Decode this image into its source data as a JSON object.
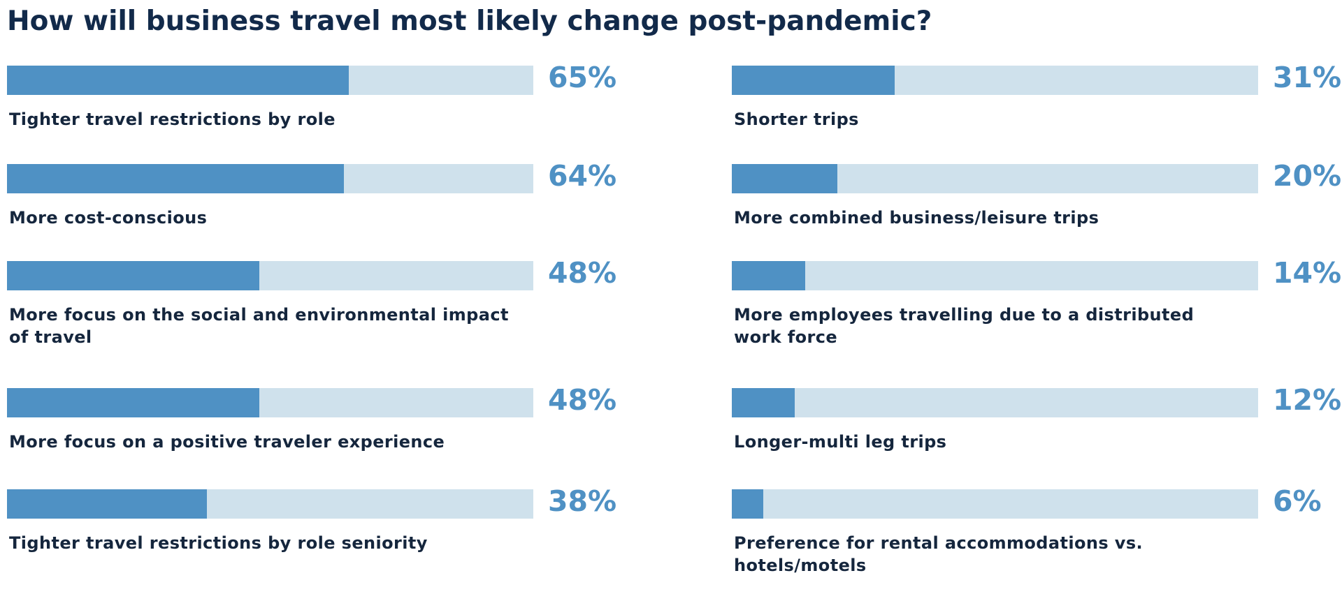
{
  "chart_data": {
    "type": "bar",
    "title": "How will business travel most likely change post-pandemic?",
    "xlabel": "",
    "ylabel": "",
    "ylim": [
      0,
      100
    ],
    "grid": false,
    "categories": [
      "Tighter travel restrictions by role",
      "More cost-conscious",
      "More focus on the social and environmental impact of travel",
      "More focus on a positive traveler experience",
      "Tighter travel restrictions by role seniority",
      "Shorter trips",
      "More combined business/leisure trips",
      "More employees travelling due to a distributed work force",
      "Longer-multi leg trips",
      "Preference for rental accommodations vs. hotels/motels"
    ],
    "values": [
      65,
      64,
      48,
      48,
      38,
      31,
      20,
      14,
      12,
      6
    ],
    "value_labels": [
      "65%",
      "64%",
      "48%",
      "48%",
      "38%",
      "31%",
      "20%",
      "14%",
      "12%",
      "6%"
    ],
    "colors": {
      "fill": "#4f91c4",
      "track": "#cfe1ec",
      "title": "#122a4a",
      "label": "#15263d"
    }
  }
}
